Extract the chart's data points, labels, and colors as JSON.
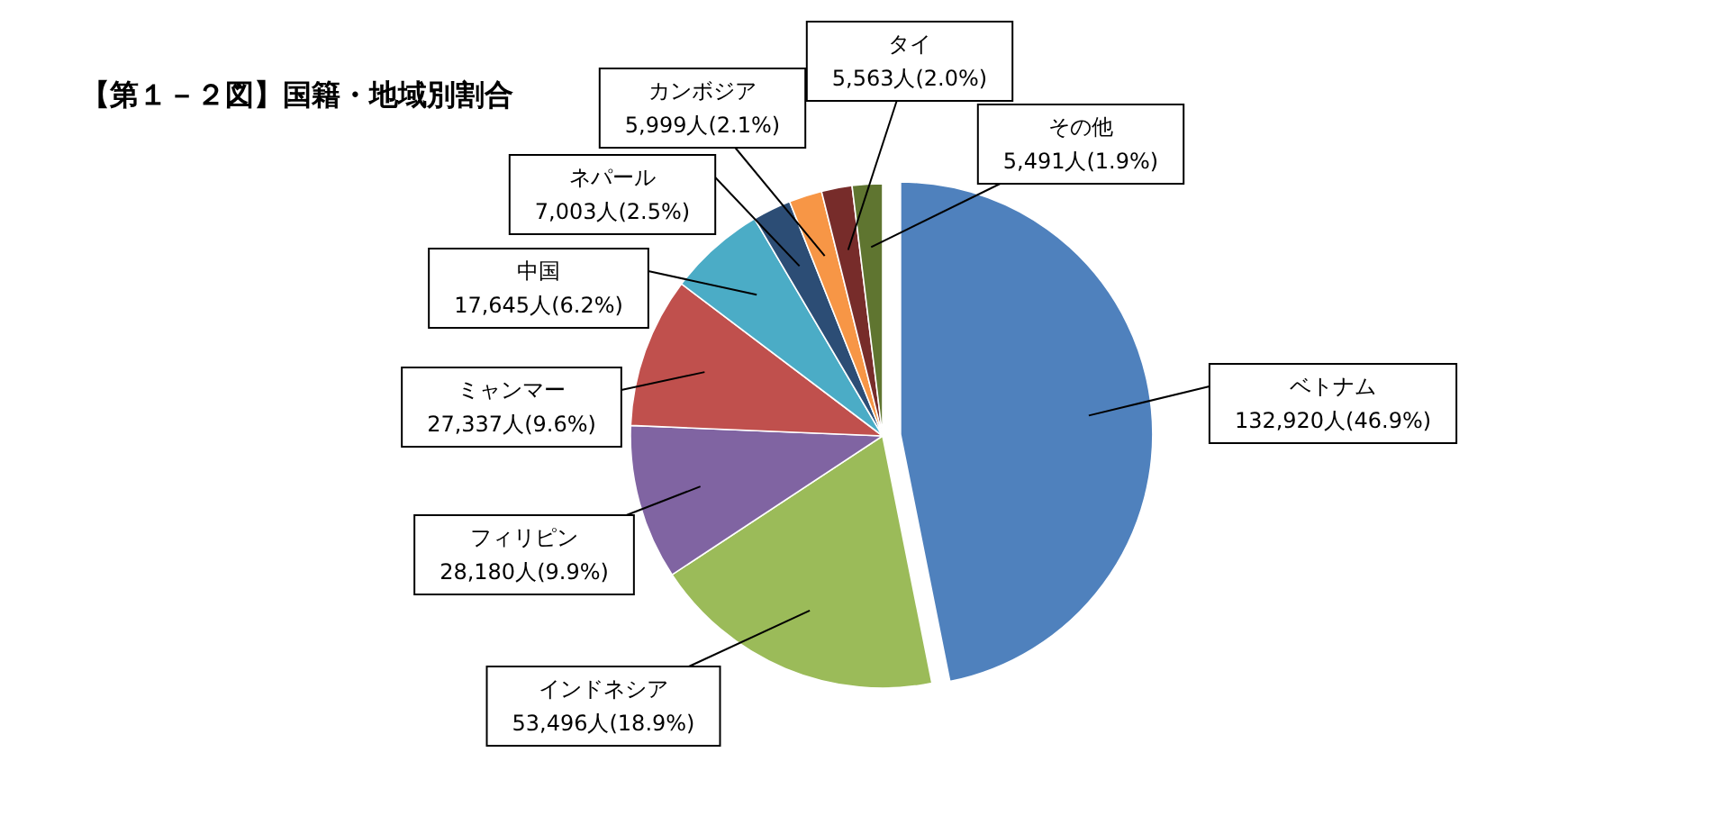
{
  "chart_data": {
    "type": "pie",
    "title": "【第１－２図】国籍・地域別割合",
    "categories": [
      "ベトナム",
      "インドネシア",
      "フィリピン",
      "ミャンマー",
      "中国",
      "ネパール",
      "カンボジア",
      "タイ",
      "その他"
    ],
    "values": [
      132920,
      53496,
      28180,
      27337,
      17645,
      7003,
      5999,
      5563,
      5491
    ],
    "colors": [
      "#4f81bd",
      "#9bbb59",
      "#8064a2",
      "#c0504d",
      "#4bacc6",
      "#2c4d75",
      "#f79646",
      "#772c2a",
      "#5f7530"
    ],
    "value_labels": [
      "132,920人(46.9%)",
      "53,496人(18.9%)",
      "28,180人(9.9%)",
      "27,337人(9.6%)",
      "17,645人(6.2%)",
      "7,003人(2.5%)",
      "5,999人(2.1%)",
      "5,563人(2.0%)",
      "5,491人(1.9%)"
    ]
  }
}
